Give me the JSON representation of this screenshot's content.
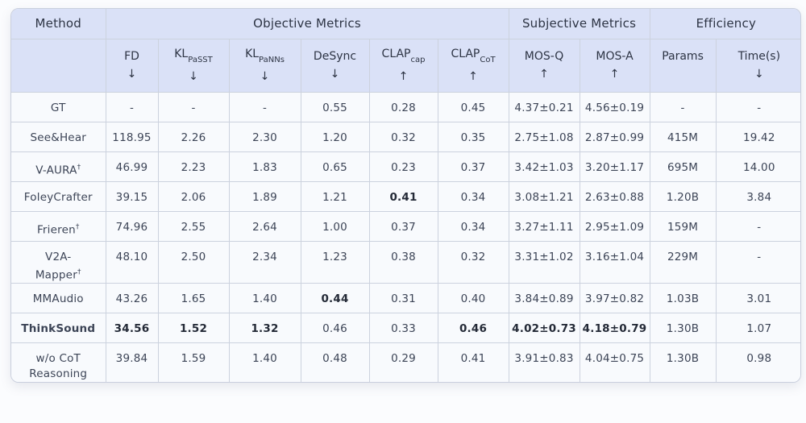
{
  "table": {
    "header": {
      "method_label": "Method",
      "groups": [
        {
          "label": "Objective Metrics",
          "span": 6
        },
        {
          "label": "Subjective Metrics",
          "span": 2
        },
        {
          "label": "Efficiency",
          "span": 2
        }
      ],
      "columns": [
        {
          "base": "FD",
          "sub": "",
          "arrow": "↓"
        },
        {
          "base": "KL",
          "sub": "PaSST",
          "arrow": "↓"
        },
        {
          "base": "KL",
          "sub": "PaNNs",
          "arrow": "↓"
        },
        {
          "base": "DeSync",
          "sub": "",
          "arrow": "↓"
        },
        {
          "base": "CLAP",
          "sub": "cap",
          "arrow": "↑"
        },
        {
          "base": "CLAP",
          "sub": "CoT",
          "arrow": "↑"
        },
        {
          "base": "MOS-Q",
          "sub": "",
          "arrow": "↑"
        },
        {
          "base": "MOS-A",
          "sub": "",
          "arrow": "↑"
        },
        {
          "base": "Params",
          "sub": "",
          "arrow": ""
        },
        {
          "base": "Time(s)",
          "sub": "",
          "arrow": "↓"
        }
      ]
    },
    "rows": [
      {
        "method": [
          "GT"
        ],
        "bold": false,
        "cells": [
          "-",
          "-",
          "-",
          "0.55",
          "0.28",
          "0.45",
          "4.37±0.21",
          "4.56±0.19",
          "-",
          "-"
        ]
      },
      {
        "method": [
          "See&Hear"
        ],
        "bold": false,
        "cells": [
          "118.95",
          "2.26",
          "2.30",
          "1.20",
          "0.32",
          "0.35",
          "2.75±1.08",
          "2.87±0.99",
          "415M",
          "19.42"
        ]
      },
      {
        "method": [
          "V-AURA†"
        ],
        "bold": false,
        "cells": [
          "46.99",
          "2.23",
          "1.83",
          "0.65",
          "0.23",
          "0.37",
          "3.42±1.03",
          "3.20±1.17",
          "695M",
          "14.00"
        ]
      },
      {
        "method": [
          "FoleyCrafter"
        ],
        "bold": false,
        "cells": [
          "39.15",
          "2.06",
          "1.89",
          "1.21",
          {
            "text": "0.41",
            "bold": true
          },
          "0.34",
          "3.08±1.21",
          "2.63±0.88",
          "1.20B",
          "3.84"
        ]
      },
      {
        "method": [
          "Frieren†"
        ],
        "bold": false,
        "cells": [
          "74.96",
          "2.55",
          "2.64",
          "1.00",
          "0.37",
          "0.34",
          "3.27±1.11",
          "2.95±1.09",
          "159M",
          "-"
        ]
      },
      {
        "method": [
          "V2A-",
          "Mapper†"
        ],
        "bold": false,
        "cells": [
          "48.10",
          "2.50",
          "2.34",
          "1.23",
          "0.38",
          "0.32",
          "3.31±1.02",
          "3.16±1.04",
          "229M",
          "-"
        ]
      },
      {
        "method": [
          "MMAudio"
        ],
        "bold": false,
        "cells": [
          "43.26",
          "1.65",
          "1.40",
          {
            "text": "0.44",
            "bold": true
          },
          "0.31",
          "0.40",
          "3.84±0.89",
          "3.97±0.82",
          "1.03B",
          "3.01"
        ]
      },
      {
        "method": [
          "ThinkSound"
        ],
        "bold": true,
        "cells": [
          {
            "text": "34.56",
            "bold": true
          },
          {
            "text": "1.52",
            "bold": true
          },
          {
            "text": "1.32",
            "bold": true
          },
          "0.46",
          "0.33",
          {
            "text": "0.46",
            "bold": true
          },
          {
            "text": "4.02±0.73",
            "bold": true
          },
          {
            "text": "4.18±0.79",
            "bold": true
          },
          "1.30B",
          "1.07"
        ]
      },
      {
        "method": [
          "w/o CoT",
          "Reasoning"
        ],
        "bold": false,
        "cells": [
          "39.84",
          "1.59",
          "1.40",
          "0.48",
          "0.29",
          "0.41",
          "3.91±0.83",
          "4.04±0.75",
          "1.30B",
          "0.98"
        ]
      }
    ]
  }
}
